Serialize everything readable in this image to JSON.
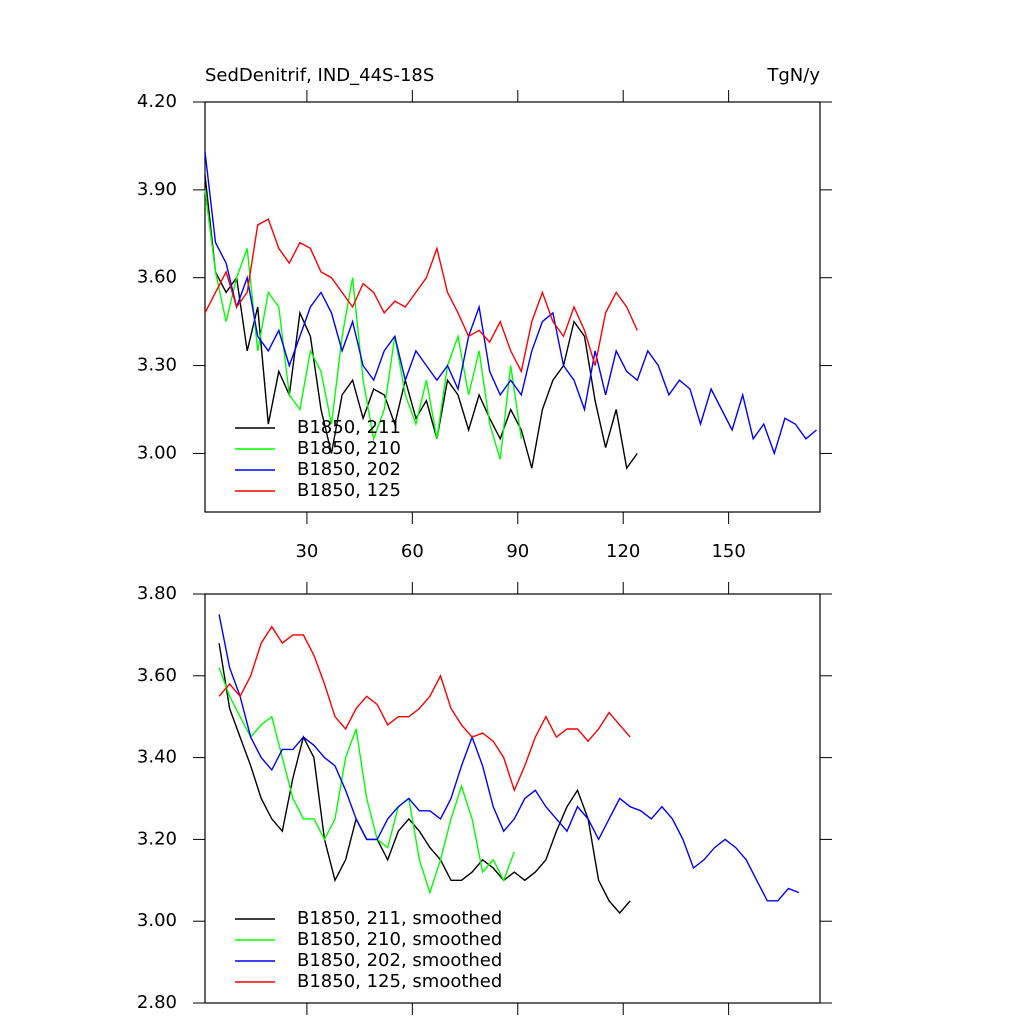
{
  "chart_data": [
    {
      "type": "line",
      "title": "SedDenitrif, IND_44S-18S",
      "units": "TgN/y",
      "x": [
        1,
        4,
        7,
        10,
        13,
        16,
        19,
        22,
        25,
        28,
        31,
        34,
        37,
        40,
        43,
        46,
        49,
        52,
        55,
        58,
        61,
        64,
        67,
        70,
        73,
        76,
        79,
        82,
        85,
        88,
        91,
        94,
        97,
        100,
        103,
        106,
        109,
        112,
        115,
        118,
        121,
        124,
        127,
        130,
        133,
        136,
        139,
        142,
        145,
        148,
        151,
        154,
        157,
        160,
        163,
        166,
        169,
        172,
        175
      ],
      "xlim": [
        1,
        176
      ],
      "xticks": [
        30,
        60,
        90,
        120,
        150
      ],
      "show_xtick_labels": true,
      "ylim": [
        2.8,
        4.2
      ],
      "yticks": [
        {
          "value": 3.0,
          "label": "3.00"
        },
        {
          "value": 3.3,
          "label": "3.30"
        },
        {
          "value": 3.6,
          "label": "3.60"
        },
        {
          "value": 3.9,
          "label": "3.90"
        },
        {
          "value": 4.2,
          "label": "4.20"
        }
      ],
      "legend": "lower left",
      "series": [
        {
          "name": "B1850, 211",
          "color": "#000000",
          "values": [
            3.95,
            3.62,
            3.55,
            3.6,
            3.35,
            3.5,
            3.1,
            3.28,
            3.2,
            3.48,
            3.4,
            3.15,
            3.0,
            3.2,
            3.25,
            3.12,
            3.22,
            3.2,
            3.1,
            3.25,
            3.12,
            3.18,
            3.05,
            3.25,
            3.2,
            3.08,
            3.2,
            3.12,
            3.05,
            3.15,
            3.08,
            2.95,
            3.15,
            3.25,
            3.3,
            3.45,
            3.4,
            3.18,
            3.02,
            3.15,
            2.95,
            3.0,
            null,
            null,
            null,
            null,
            null,
            null,
            null,
            null,
            null,
            null,
            null,
            null,
            null,
            null,
            null,
            null,
            null
          ]
        },
        {
          "name": "B1850, 210",
          "color": "#00ff00",
          "values": [
            3.9,
            3.62,
            3.45,
            3.6,
            3.7,
            3.35,
            3.55,
            3.5,
            3.2,
            3.15,
            3.35,
            3.28,
            3.1,
            3.4,
            3.6,
            3.25,
            3.05,
            3.15,
            3.4,
            3.2,
            3.1,
            3.25,
            3.05,
            3.3,
            3.4,
            3.2,
            3.35,
            3.1,
            2.98,
            3.3,
            3.05,
            null,
            null,
            null,
            null,
            null,
            null,
            null,
            null,
            null,
            null,
            null,
            null,
            null,
            null,
            null,
            null,
            null,
            null,
            null,
            null,
            null,
            null,
            null,
            null,
            null,
            null,
            null,
            null
          ]
        },
        {
          "name": "B1850, 202",
          "color": "#0000ff",
          "values": [
            4.03,
            3.72,
            3.65,
            3.5,
            3.6,
            3.4,
            3.35,
            3.42,
            3.3,
            3.4,
            3.5,
            3.55,
            3.48,
            3.35,
            3.45,
            3.3,
            3.25,
            3.35,
            3.4,
            3.25,
            3.35,
            3.3,
            3.25,
            3.3,
            3.22,
            3.4,
            3.5,
            3.28,
            3.2,
            3.25,
            3.2,
            3.35,
            3.45,
            3.48,
            3.3,
            3.25,
            3.15,
            3.35,
            3.2,
            3.35,
            3.28,
            3.25,
            3.35,
            3.3,
            3.2,
            3.25,
            3.22,
            3.1,
            3.22,
            3.15,
            3.08,
            3.2,
            3.05,
            3.1,
            3.0,
            3.12,
            3.1,
            3.05,
            3.08
          ]
        },
        {
          "name": "B1850, 125",
          "color": "#ff0000",
          "values": [
            3.48,
            3.55,
            3.62,
            3.5,
            3.55,
            3.78,
            3.8,
            3.7,
            3.65,
            3.72,
            3.7,
            3.62,
            3.6,
            3.55,
            3.5,
            3.58,
            3.55,
            3.48,
            3.52,
            3.5,
            3.55,
            3.6,
            3.7,
            3.55,
            3.48,
            3.4,
            3.42,
            3.38,
            3.45,
            3.35,
            3.28,
            3.45,
            3.55,
            3.45,
            3.4,
            3.5,
            3.42,
            3.3,
            3.48,
            3.55,
            3.5,
            3.42,
            null,
            null,
            null,
            null,
            null,
            null,
            null,
            null,
            null,
            null,
            null,
            null,
            null,
            null,
            null,
            null,
            null
          ]
        }
      ]
    },
    {
      "type": "line",
      "x": [
        5,
        8,
        11,
        14,
        17,
        20,
        23,
        26,
        29,
        32,
        35,
        38,
        41,
        44,
        47,
        50,
        53,
        56,
        59,
        62,
        65,
        68,
        71,
        74,
        77,
        80,
        83,
        86,
        89,
        92,
        95,
        98,
        101,
        104,
        107,
        110,
        113,
        116,
        119,
        122,
        125,
        128,
        131,
        134,
        137,
        140,
        143,
        146,
        149,
        152,
        155,
        158,
        161,
        164,
        167,
        170
      ],
      "xlim": [
        1,
        176
      ],
      "xticks": [
        30,
        60,
        90,
        120,
        150
      ],
      "show_xtick_labels": false,
      "ylim": [
        2.8,
        3.8
      ],
      "yticks": [
        {
          "value": 2.8,
          "label": "2.80"
        },
        {
          "value": 3.0,
          "label": "3.00"
        },
        {
          "value": 3.2,
          "label": "3.20"
        },
        {
          "value": 3.4,
          "label": "3.40"
        },
        {
          "value": 3.6,
          "label": "3.60"
        },
        {
          "value": 3.8,
          "label": "3.80"
        }
      ],
      "legend": "lower left",
      "series": [
        {
          "name": "B1850, 211, smoothed",
          "color": "#000000",
          "values": [
            3.68,
            3.52,
            3.45,
            3.38,
            3.3,
            3.25,
            3.22,
            3.35,
            3.45,
            3.4,
            3.2,
            3.1,
            3.15,
            3.25,
            3.2,
            3.2,
            3.15,
            3.22,
            3.25,
            3.22,
            3.18,
            3.15,
            3.1,
            3.1,
            3.12,
            3.15,
            3.13,
            3.1,
            3.12,
            3.1,
            3.12,
            3.15,
            3.22,
            3.28,
            3.32,
            3.25,
            3.1,
            3.05,
            3.02,
            3.05,
            null,
            null,
            null,
            null,
            null,
            null,
            null,
            null,
            null,
            null,
            null,
            null,
            null,
            null,
            null,
            null
          ]
        },
        {
          "name": "B1850, 210, smoothed",
          "color": "#00ff00",
          "values": [
            3.62,
            3.55,
            3.5,
            3.45,
            3.48,
            3.5,
            3.4,
            3.3,
            3.25,
            3.25,
            3.2,
            3.25,
            3.4,
            3.47,
            3.3,
            3.2,
            3.18,
            3.28,
            3.3,
            3.15,
            3.07,
            3.15,
            3.25,
            3.33,
            3.25,
            3.12,
            3.15,
            3.1,
            3.17,
            null,
            null,
            null,
            null,
            null,
            null,
            null,
            null,
            null,
            null,
            null,
            null,
            null,
            null,
            null,
            null,
            null,
            null,
            null,
            null,
            null,
            null,
            null,
            null,
            null,
            null,
            null
          ]
        },
        {
          "name": "B1850, 202, smoothed",
          "color": "#0000ff",
          "values": [
            3.75,
            3.62,
            3.55,
            3.45,
            3.4,
            3.37,
            3.42,
            3.42,
            3.45,
            3.43,
            3.4,
            3.38,
            3.32,
            3.25,
            3.2,
            3.2,
            3.25,
            3.28,
            3.3,
            3.27,
            3.27,
            3.25,
            3.3,
            3.38,
            3.45,
            3.38,
            3.28,
            3.22,
            3.25,
            3.3,
            3.32,
            3.28,
            3.25,
            3.22,
            3.28,
            3.25,
            3.2,
            3.25,
            3.3,
            3.28,
            3.27,
            3.25,
            3.28,
            3.25,
            3.2,
            3.13,
            3.15,
            3.18,
            3.2,
            3.18,
            3.15,
            3.1,
            3.05,
            3.05,
            3.08,
            3.07
          ]
        },
        {
          "name": "B1850, 125, smoothed",
          "color": "#ff0000",
          "values": [
            3.55,
            3.58,
            3.55,
            3.6,
            3.68,
            3.72,
            3.68,
            3.7,
            3.7,
            3.65,
            3.58,
            3.5,
            3.47,
            3.52,
            3.55,
            3.53,
            3.48,
            3.5,
            3.5,
            3.52,
            3.55,
            3.6,
            3.52,
            3.48,
            3.45,
            3.46,
            3.44,
            3.4,
            3.32,
            3.38,
            3.45,
            3.5,
            3.45,
            3.47,
            3.47,
            3.44,
            3.47,
            3.51,
            3.48,
            3.45,
            null,
            null,
            null,
            null,
            null,
            null,
            null,
            null,
            null,
            null,
            null,
            null,
            null,
            null,
            null,
            null
          ]
        }
      ]
    }
  ]
}
